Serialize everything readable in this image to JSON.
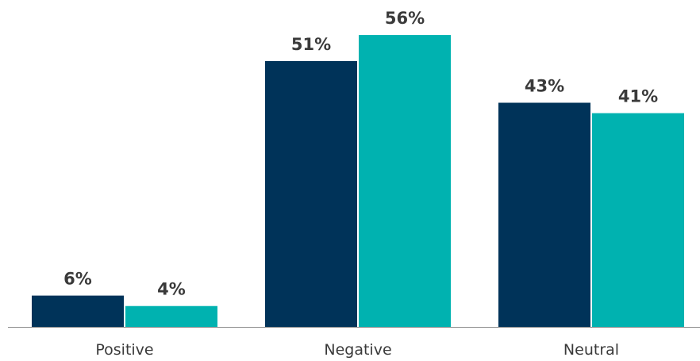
{
  "chart_data": {
    "type": "bar",
    "categories": [
      "Positive",
      "Negative",
      "Neutral"
    ],
    "series": [
      {
        "values": [
          6,
          51,
          43
        ],
        "color": "#003359"
      },
      {
        "values": [
          4,
          56,
          41
        ],
        "color": "#00b2b0"
      }
    ],
    "value_suffix": "%",
    "title": "",
    "xlabel": "",
    "ylabel": "",
    "ylim": [
      0,
      60
    ],
    "grid": false,
    "legend": "none"
  }
}
